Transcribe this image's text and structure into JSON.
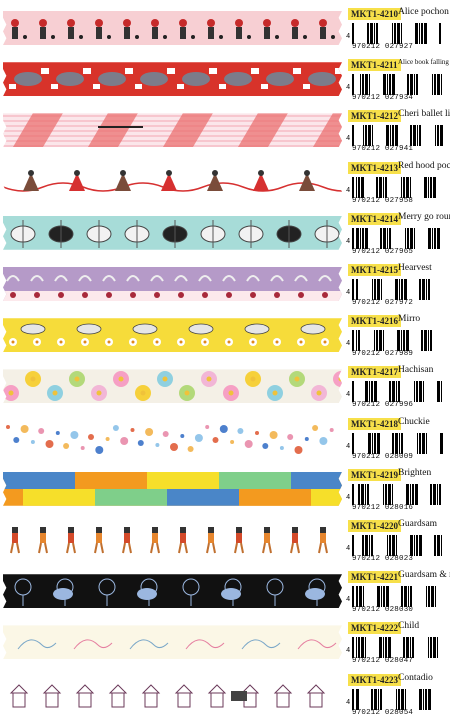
{
  "items": [
    {
      "code": "MKT1-4210",
      "name": "Alice pochon",
      "barcode": "970212 027927",
      "lead": "4",
      "bg": "#f7cfd3",
      "accent": "#c62a2a"
    },
    {
      "code": "MKT1-4211",
      "name": "Alice book falling down",
      "barcode": "970212 027934",
      "lead": "4",
      "bg": "#d8332a",
      "accent": "#ffffff"
    },
    {
      "code": "MKT1-4212",
      "name": "Cheri ballet light",
      "barcode": "970212 027941",
      "lead": "4",
      "bg": "#fbe6ea",
      "accent": "#d84a4a"
    },
    {
      "code": "MKT1-4213",
      "name": "Red hood pochon",
      "barcode": "970212 027958",
      "lead": "4",
      "bg": "#ffffff",
      "accent": "#d63030"
    },
    {
      "code": "MKT1-4214",
      "name": "Merry go round",
      "barcode": "970212 027965",
      "lead": "4",
      "bg": "#a7dcd8",
      "accent": "#333355"
    },
    {
      "code": "MKT1-4215",
      "name": "Hearvest",
      "barcode": "970212 027972",
      "lead": "4",
      "bg": "#b59ac8",
      "accent": "#a8293a"
    },
    {
      "code": "MKT1-4216",
      "name": "Mirro",
      "barcode": "970212 027989",
      "lead": "4",
      "bg": "#f6dc3a",
      "accent": "#ffffff"
    },
    {
      "code": "MKT1-4217",
      "name": "Hachisan",
      "barcode": "970212 027996",
      "lead": "4",
      "bg": "#f4f0e6",
      "accent": "#f28ab5"
    },
    {
      "code": "MKT1-4218",
      "name": "Chuckie",
      "barcode": "970212 028009",
      "lead": "4",
      "bg": "#ffffff",
      "accent": "#e05d3a"
    },
    {
      "code": "MKT1-4219",
      "name": "Brighten",
      "barcode": "970212 028016",
      "lead": "4",
      "bg": "#f39a1f",
      "accent": "#4a86c8"
    },
    {
      "code": "MKT1-4220",
      "name": "Guardsam",
      "barcode": "970212 028023",
      "lead": "4",
      "bg": "#ffffff",
      "accent": "#e6862e"
    },
    {
      "code": "MKT1-4221",
      "name": "Guardsam & rose",
      "barcode": "970212 028030",
      "lead": "4",
      "bg": "#111111",
      "accent": "#9bb7e0"
    },
    {
      "code": "MKT1-4222",
      "name": "Child",
      "barcode": "970212 028047",
      "lead": "4",
      "bg": "#fbf7e6",
      "accent": "#7aa7c8"
    },
    {
      "code": "MKT1-4223",
      "name": "Contadio",
      "barcode": "970212 028054",
      "lead": "4",
      "bg": "#ffffff",
      "accent": "#6b3a5a"
    }
  ]
}
